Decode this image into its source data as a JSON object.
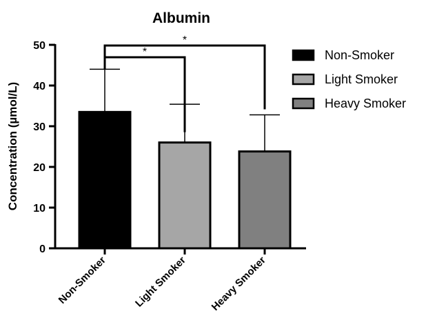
{
  "chart_data": {
    "type": "bar",
    "title": "Albumin",
    "ylabel": "Concentration (µmol/L)",
    "xlabel": "",
    "ylim": [
      0,
      50
    ],
    "yticks": [
      0,
      10,
      20,
      30,
      40,
      50
    ],
    "categories": [
      "Non-Smoker",
      "Light Smoker",
      "Heavy Smoker"
    ],
    "values": [
      33.5,
      26.0,
      23.8
    ],
    "error_upper": [
      44.0,
      35.4,
      32.8
    ],
    "colors": [
      "#000000",
      "#a6a6a6",
      "#808080"
    ],
    "legend": {
      "position": "right",
      "entries": [
        "Non-Smoker",
        "Light Smoker",
        "Heavy Smoker"
      ]
    },
    "significance": [
      {
        "from": 0,
        "to": 1,
        "label": "*"
      },
      {
        "from": 0,
        "to": 2,
        "label": "*"
      }
    ],
    "grid": false
  }
}
